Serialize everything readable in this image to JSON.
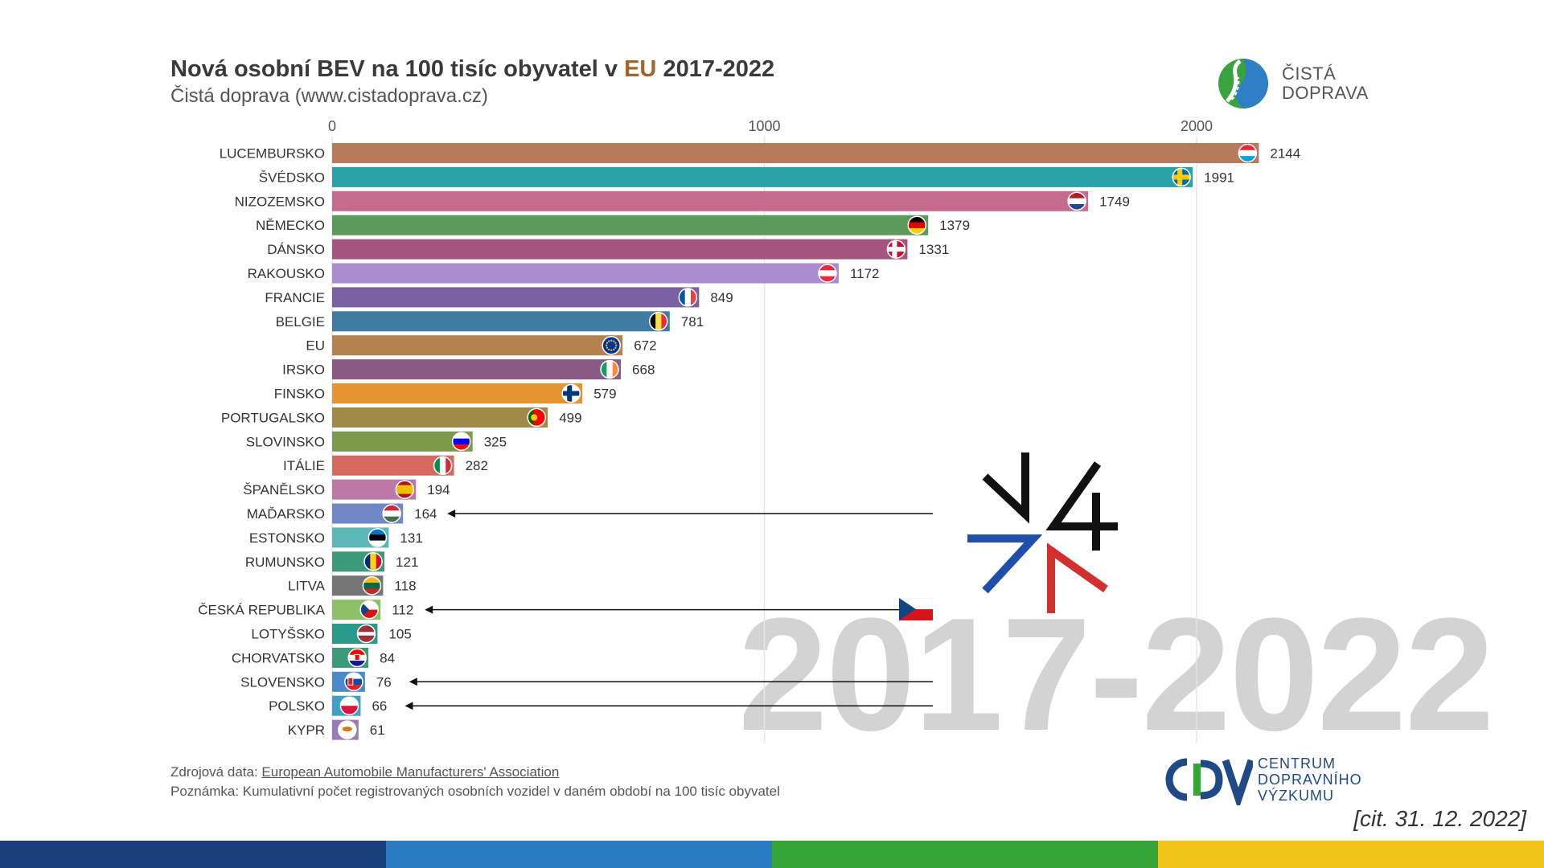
{
  "header": {
    "title_part1": "Nová osobní BEV na 100 tisíc obyvatel v ",
    "title_eu": "EU",
    "title_part2": " 2017-2022",
    "subtitle": "Čistá doprava (www.cistadoprava.cz)"
  },
  "logo_cista": {
    "line1": "ČISTÁ",
    "line2": "DOPRAVA"
  },
  "watermark": "2017-2022",
  "footer": {
    "source_label": "Zdrojová data: ",
    "source_link": "European Automobile Manufacturers' Association",
    "note": "Poznámka: Kumulativní počet registrovaných osobních vozidel v daném období na 100 tisíc obyvatel"
  },
  "logo_cdv": {
    "line1": "CENTRUM",
    "line2": "DOPRAVNÍHO",
    "line3": "VÝZKUMU"
  },
  "citation": "[cit. 31. 12. 2022]",
  "stripes": [
    "#1b3f7a",
    "#2a7cc2",
    "#35a538",
    "#f0c419"
  ],
  "chart_data": {
    "type": "bar",
    "orientation": "horizontal",
    "title": "Nová osobní BEV na 100 tisíc obyvatel v EU 2017-2022",
    "xlim": [
      0,
      2200
    ],
    "xticks": [
      "0",
      "1000",
      "2000"
    ],
    "grid": true,
    "categories": [
      "LUCEMBURSKO",
      "ŠVÉDSKO",
      "NIZOZEMSKO",
      "NĚMECKO",
      "DÁNSKO",
      "RAKOUSKO",
      "FRANCIE",
      "BELGIE",
      "EU",
      "IRSKO",
      "FINSKO",
      "PORTUGALSKO",
      "SLOVINSKO",
      "ITÁLIE",
      "ŠPANĚLSKO",
      "MAĎARSKO",
      "ESTONSKO",
      "RUMUNSKO",
      "LITVA",
      "ČESKÁ REPUBLIKA",
      "LOTYŠSKO",
      "CHORVATSKO",
      "SLOVENSKO",
      "POLSKO",
      "KYPR"
    ],
    "values": [
      2144,
      1991,
      1749,
      1379,
      1331,
      1172,
      849,
      781,
      672,
      668,
      579,
      499,
      325,
      282,
      194,
      164,
      131,
      121,
      118,
      112,
      105,
      84,
      76,
      66,
      61
    ],
    "colors": [
      "#b77a5a",
      "#2aa1a6",
      "#c76b8e",
      "#5c9a5c",
      "#a5537f",
      "#a98ccf",
      "#7a5fa3",
      "#3f7ca3",
      "#b5824f",
      "#8a5a84",
      "#e59530",
      "#a08a47",
      "#7c9a4a",
      "#d66a60",
      "#be78a8",
      "#7088c8",
      "#5cb8b8",
      "#3a9a7a",
      "#757575",
      "#8ec06a",
      "#2a9a8a",
      "#3a9a7a",
      "#4a8acd",
      "#40a0c8",
      "#9a7ab8"
    ],
    "flags": [
      "luxembourg",
      "sweden",
      "netherlands",
      "germany",
      "denmark",
      "austria",
      "france",
      "belgium",
      "eu",
      "ireland",
      "finland",
      "portugal",
      "slovenia",
      "italy",
      "spain",
      "hungary",
      "estonia",
      "romania",
      "lithuania",
      "czechia",
      "latvia",
      "croatia",
      "slovakia",
      "poland",
      "cyprus"
    ],
    "highlighted": [
      "MAĎARSKO",
      "ČESKÁ REPUBLIKA",
      "SLOVENSKO",
      "POLSKO"
    ]
  }
}
